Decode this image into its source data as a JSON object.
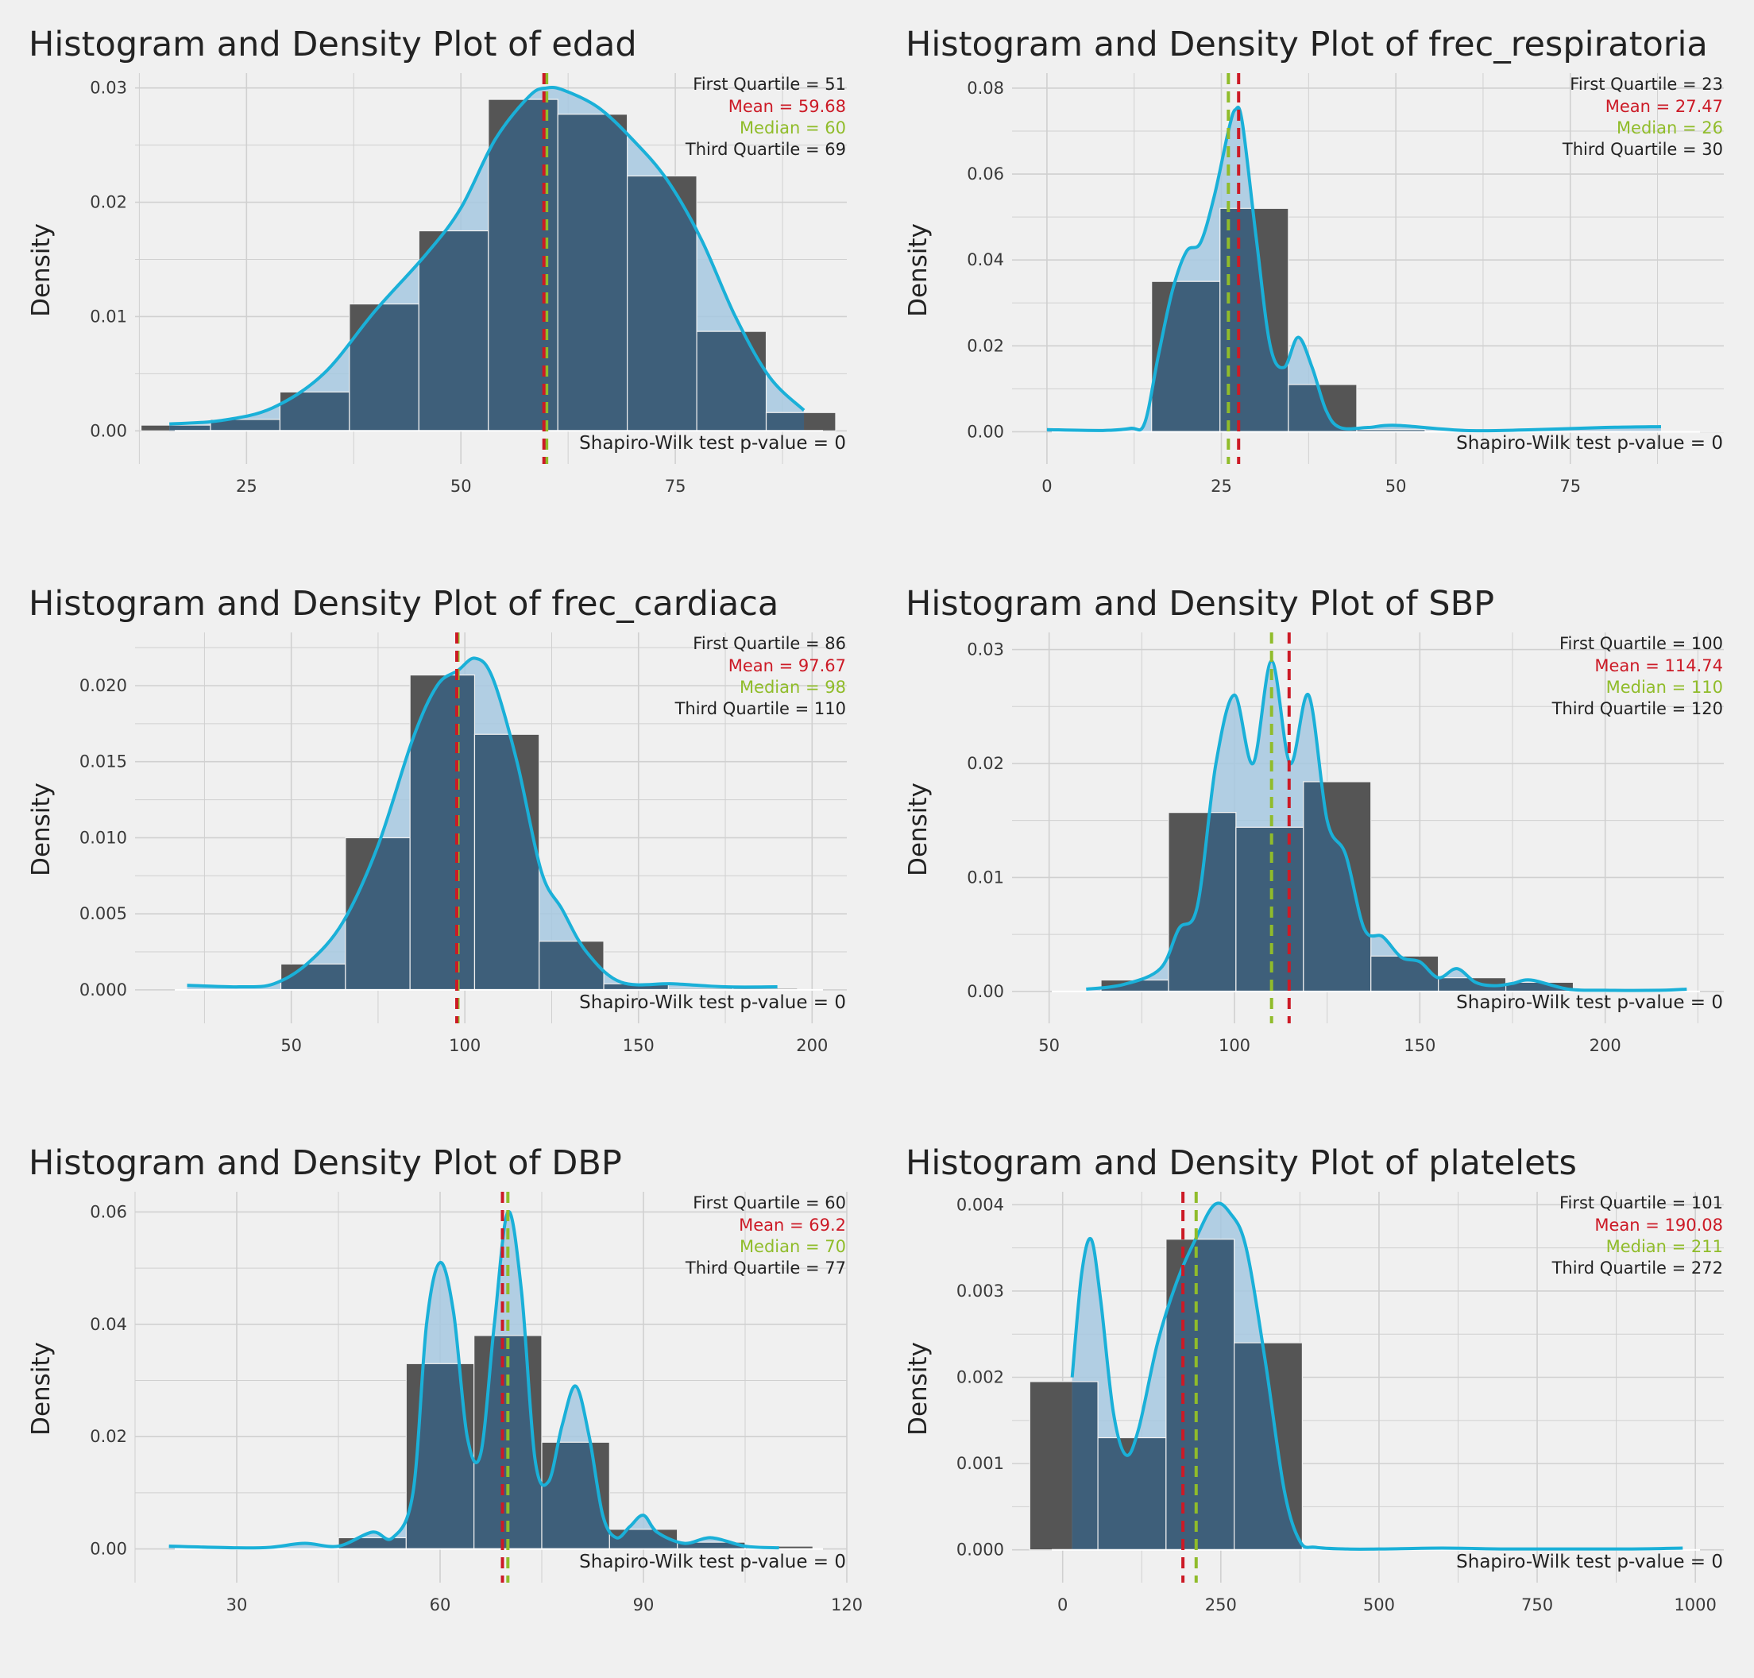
{
  "colors": {
    "background": "#f0f0f0",
    "grid": "#d0d0d0",
    "hist_fill": "#555555",
    "hist_stroke": "#f0f0f0",
    "density_line": "#1ab0d8",
    "density_fill": "#a6c8e0",
    "overlap": "#3e5f7a",
    "mean": "#cc1a26",
    "median": "#90bc2a",
    "text": "#222222"
  },
  "chart_data": [
    {
      "type": "histogram",
      "title": "Histogram and Density Plot of edad",
      "ylabel": "Density",
      "xlim": [
        12,
        95
      ],
      "ylim": [
        -0.0029,
        0.0313
      ],
      "xticks": [
        25,
        50,
        75
      ],
      "yticks": [
        0.0,
        0.01,
        0.02,
        0.03
      ],
      "yfmt": "0.00",
      "bins": {
        "start": 12.7,
        "width": 8.1,
        "values": [
          0.0005,
          0.001,
          0.0034,
          0.0111,
          0.0175,
          0.029,
          0.0277,
          0.0223,
          0.0087,
          0.0016
        ]
      },
      "density": {
        "x": [
          16,
          22,
          28,
          34,
          40,
          46,
          50,
          54,
          58,
          60,
          62,
          66,
          70,
          74,
          78,
          82,
          86,
          90
        ],
        "y": [
          0.0006,
          0.0009,
          0.002,
          0.005,
          0.0105,
          0.0155,
          0.0195,
          0.0255,
          0.0293,
          0.03,
          0.0298,
          0.0283,
          0.0255,
          0.022,
          0.0168,
          0.01,
          0.0047,
          0.0018
        ]
      },
      "stats": {
        "q1": "First Quartile = 51",
        "mean": "Mean = 59.68",
        "median": "Median = 60",
        "q3": "Third Quartile = 69"
      },
      "mean_value": 59.68,
      "median_value": 60,
      "shapiro": "Shapiro-Wilk test p-value = 0"
    },
    {
      "type": "histogram",
      "title": "Histogram and Density Plot of frec_respiratoria",
      "ylabel": "Density",
      "xlim": [
        -5,
        97
      ],
      "ylim": [
        -0.0075,
        0.0835
      ],
      "xticks": [
        0,
        25,
        50,
        75
      ],
      "yticks": [
        0.0,
        0.02,
        0.04,
        0.06,
        0.08
      ],
      "yfmt": "0.00",
      "bins": {
        "start": 15,
        "width": 9.8,
        "values": [
          0.035,
          0.052,
          0.011,
          0.0005,
          0.0002,
          0.0001,
          0.0001,
          0.0001,
          0.0001
        ]
      },
      "density": {
        "x": [
          0,
          8,
          12,
          14,
          16,
          18,
          20,
          22,
          24,
          26,
          27,
          28,
          30,
          32,
          34,
          36,
          38,
          40,
          42,
          46,
          50,
          60,
          70,
          80,
          88
        ],
        "y": [
          0.0005,
          0.0003,
          0.0008,
          0.002,
          0.018,
          0.033,
          0.042,
          0.044,
          0.055,
          0.07,
          0.075,
          0.072,
          0.045,
          0.02,
          0.015,
          0.022,
          0.015,
          0.005,
          0.001,
          0.001,
          0.0015,
          0.0003,
          0.0005,
          0.001,
          0.0012
        ]
      },
      "stats": {
        "q1": "First Quartile = 23",
        "mean": "Mean = 27.47",
        "median": "Median = 26",
        "q3": "Third Quartile = 30"
      },
      "mean_value": 27.47,
      "median_value": 26,
      "shapiro": "Shapiro-Wilk test p-value = 0"
    },
    {
      "type": "histogram",
      "title": "Histogram and Density Plot of frec_cardiaca",
      "ylabel": "Density",
      "xlim": [
        5,
        210
      ],
      "ylim": [
        -0.0022,
        0.0235
      ],
      "xticks": [
        50,
        100,
        150,
        200
      ],
      "yticks": [
        0.0,
        0.005,
        0.01,
        0.015,
        0.02
      ],
      "yfmt": "0.000",
      "bins": {
        "start": 47,
        "width": 18.6,
        "values": [
          0.0017,
          0.01,
          0.0207,
          0.0168,
          0.0032,
          0.0004,
          0.0001,
          0.0001
        ]
      },
      "density": {
        "x": [
          20,
          35,
          45,
          55,
          65,
          75,
          85,
          92,
          98,
          103,
          108,
          115,
          122,
          128,
          135,
          145,
          160,
          175,
          190
        ],
        "y": [
          0.0003,
          0.0002,
          0.0004,
          0.0018,
          0.0045,
          0.0095,
          0.0165,
          0.02,
          0.021,
          0.0218,
          0.0205,
          0.015,
          0.0078,
          0.0053,
          0.0025,
          0.0005,
          0.0004,
          0.0002,
          0.0002
        ]
      },
      "stats": {
        "q1": "First Quartile = 86",
        "mean": "Mean = 97.67",
        "median": "Median = 98",
        "q3": "Third Quartile = 110"
      },
      "mean_value": 97.67,
      "median_value": 98,
      "shapiro": "Shapiro-Wilk test p-value = 0"
    },
    {
      "type": "histogram",
      "title": "Histogram and Density Plot of SBP",
      "ylabel": "Density",
      "xlim": [
        40,
        232
      ],
      "ylim": [
        -0.0028,
        0.0315
      ],
      "xticks": [
        50,
        100,
        150,
        200
      ],
      "yticks": [
        0.0,
        0.01,
        0.02,
        0.03
      ],
      "yfmt": "0.00",
      "bins": {
        "start": 64,
        "width": 18.2,
        "values": [
          0.001,
          0.0157,
          0.0144,
          0.0184,
          0.0031,
          0.0012,
          0.0008,
          0.0001
        ]
      },
      "density": {
        "x": [
          60,
          70,
          80,
          85,
          90,
          95,
          100,
          105,
          110,
          115,
          120,
          125,
          130,
          135,
          140,
          145,
          150,
          155,
          160,
          165,
          170,
          175,
          180,
          190,
          200,
          215,
          222
        ],
        "y": [
          0.0002,
          0.0006,
          0.002,
          0.0055,
          0.0075,
          0.02,
          0.026,
          0.02,
          0.029,
          0.02,
          0.026,
          0.015,
          0.012,
          0.0055,
          0.0048,
          0.003,
          0.0026,
          0.0012,
          0.002,
          0.0008,
          0.0005,
          0.0007,
          0.001,
          0.0002,
          0.0001,
          0.0001,
          0.0002
        ]
      },
      "stats": {
        "q1": "First Quartile = 100",
        "mean": "Mean = 114.74",
        "median": "Median = 110",
        "q3": "Third Quartile = 120"
      },
      "mean_value": 114.74,
      "median_value": 110,
      "shapiro": "Shapiro-Wilk test p-value = 0"
    },
    {
      "type": "histogram",
      "title": "Histogram and Density Plot of DBP",
      "ylabel": "Density",
      "xlim": [
        15,
        120
      ],
      "ylim": [
        -0.006,
        0.0636
      ],
      "xticks": [
        30,
        60,
        90,
        120
      ],
      "yticks": [
        0.0,
        0.02,
        0.04,
        0.06
      ],
      "yfmt": "0.00",
      "bins": {
        "start": 45,
        "width": 10,
        "values": [
          0.002,
          0.033,
          0.038,
          0.019,
          0.0035,
          0.0012,
          0.0005
        ]
      },
      "density": {
        "x": [
          20,
          30,
          35,
          40,
          45,
          50,
          53,
          56,
          58,
          60,
          62,
          64,
          66,
          68,
          70,
          72,
          74,
          76,
          78,
          80,
          82,
          84,
          86,
          88,
          90,
          92,
          96,
          100,
          105,
          110
        ],
        "y": [
          0.0005,
          0.0002,
          0.0003,
          0.001,
          0.0005,
          0.003,
          0.002,
          0.01,
          0.04,
          0.051,
          0.042,
          0.02,
          0.017,
          0.04,
          0.06,
          0.046,
          0.016,
          0.012,
          0.022,
          0.029,
          0.02,
          0.006,
          0.002,
          0.004,
          0.006,
          0.003,
          0.001,
          0.002,
          0.0005,
          0.0002
        ]
      },
      "stats": {
        "q1": "First Quartile = 60",
        "mean": "Mean = 69.2",
        "median": "Median = 70",
        "q3": "Third Quartile = 77"
      },
      "mean_value": 69.2,
      "median_value": 70,
      "shapiro": "Shapiro-Wilk test p-value = 0"
    },
    {
      "type": "histogram",
      "title": "Histogram and Density Plot of platelets",
      "ylabel": "Density",
      "xlim": [
        -80,
        1045
      ],
      "ylim": [
        -0.00038,
        0.00415
      ],
      "xticks": [
        0,
        250,
        500,
        750,
        1000
      ],
      "yticks": [
        0.0,
        0.001,
        0.002,
        0.003,
        0.004
      ],
      "yfmt": "0.000",
      "bins": {
        "start": -52,
        "width": 107.7,
        "values": [
          0.00195,
          0.0013,
          0.0036,
          0.0024
        ]
      },
      "density": {
        "x": [
          15,
          30,
          45,
          60,
          80,
          100,
          120,
          150,
          180,
          210,
          240,
          265,
          290,
          320,
          350,
          375,
          400,
          450,
          500,
          600,
          700,
          800,
          900,
          980
        ],
        "y": [
          0.002,
          0.0032,
          0.0036,
          0.0029,
          0.0016,
          0.0011,
          0.0014,
          0.0024,
          0.0031,
          0.0036,
          0.004,
          0.0039,
          0.0035,
          0.0022,
          0.0007,
          0.0001,
          3e-05,
          1e-05,
          1e-05,
          2e-05,
          1e-05,
          1e-05,
          1e-05,
          2e-05
        ]
      },
      "stats": {
        "q1": "First Quartile = 101",
        "mean": "Mean = 190.08",
        "median": "Median = 211",
        "q3": "Third Quartile = 272"
      },
      "mean_value": 190.08,
      "median_value": 211,
      "shapiro": "Shapiro-Wilk test p-value = 0"
    }
  ]
}
